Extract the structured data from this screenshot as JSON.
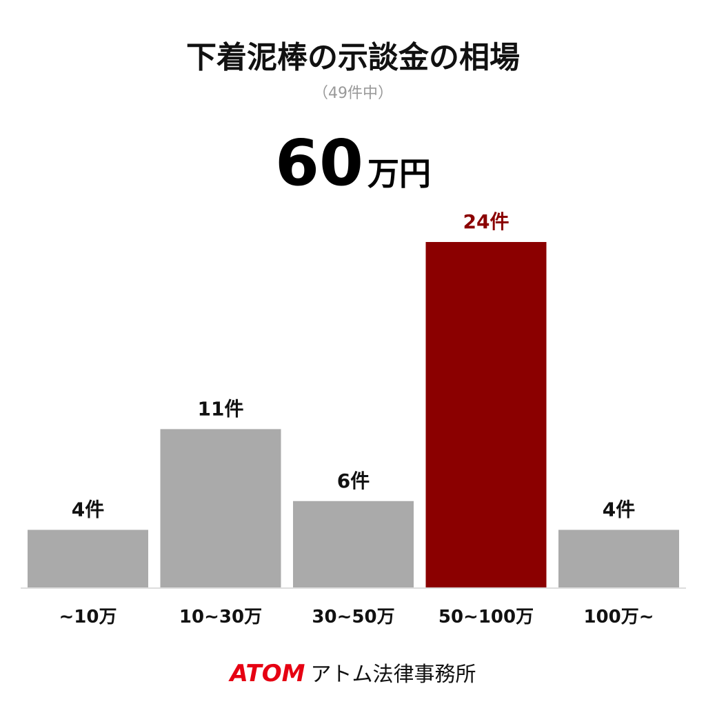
{
  "chart_data": {
    "type": "bar",
    "title": "下着泥棒の示談金の相場",
    "subtitle": "（49件中）",
    "headline": {
      "value": 60,
      "unit": "万円"
    },
    "categories": [
      "~10万",
      "10~30万",
      "30~50万",
      "50~100万",
      "100万~"
    ],
    "values": [
      4,
      11,
      6,
      24,
      4
    ],
    "value_labels": [
      "4件",
      "11件",
      "6件",
      "24件",
      "4件"
    ],
    "colors": [
      "#aaaaaa",
      "#aaaaaa",
      "#aaaaaa",
      "#8b0000",
      "#aaaaaa"
    ],
    "label_colors": [
      "#111111",
      "#111111",
      "#111111",
      "#8b0000",
      "#111111"
    ]
  },
  "footer": {
    "brand": "ATOM",
    "name": "アトム法律事務所"
  }
}
